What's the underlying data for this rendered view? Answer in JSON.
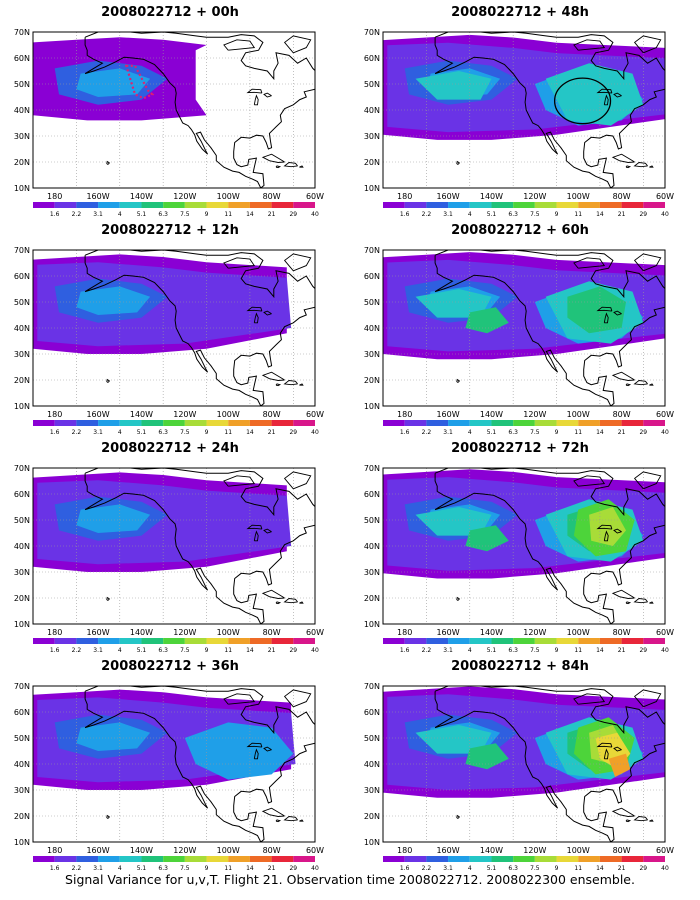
{
  "palette": [
    "#8a00d4",
    "#6a33e6",
    "#2f5fe0",
    "#1f9fe8",
    "#24c6c6",
    "#20c37a",
    "#4dd43a",
    "#a8dc38",
    "#e8d838",
    "#f0a028",
    "#ee6a26",
    "#e8263a",
    "#d8168a"
  ],
  "legend_labels": [
    "1.6",
    "2.2",
    "3.1",
    "4",
    "5.1",
    "6.3",
    "7.5",
    "9",
    "11",
    "14",
    "21",
    "29",
    "40"
  ],
  "lat_labels": [
    "70N",
    "60N",
    "50N",
    "40N",
    "30N",
    "20N",
    "10N"
  ],
  "lon_labels": [
    "180",
    "160W",
    "140W",
    "120W",
    "100W",
    "80W",
    "60W"
  ],
  "panels": [
    {
      "title": "2008022712 + 00h",
      "level": 0
    },
    {
      "title": "2008022712 + 48h",
      "level": 3
    },
    {
      "title": "2008022712 + 12h",
      "level": 1
    },
    {
      "title": "2008022712 + 60h",
      "level": 4
    },
    {
      "title": "2008022712 + 24h",
      "level": 1
    },
    {
      "title": "2008022712 + 72h",
      "level": 5
    },
    {
      "title": "2008022712 + 36h",
      "level": 2
    },
    {
      "title": "2008022712 + 84h",
      "level": 6
    }
  ],
  "caption": "Signal Variance for u,v,T. Flight 21. Observation time 2008022712. 2008022300 ensemble."
}
